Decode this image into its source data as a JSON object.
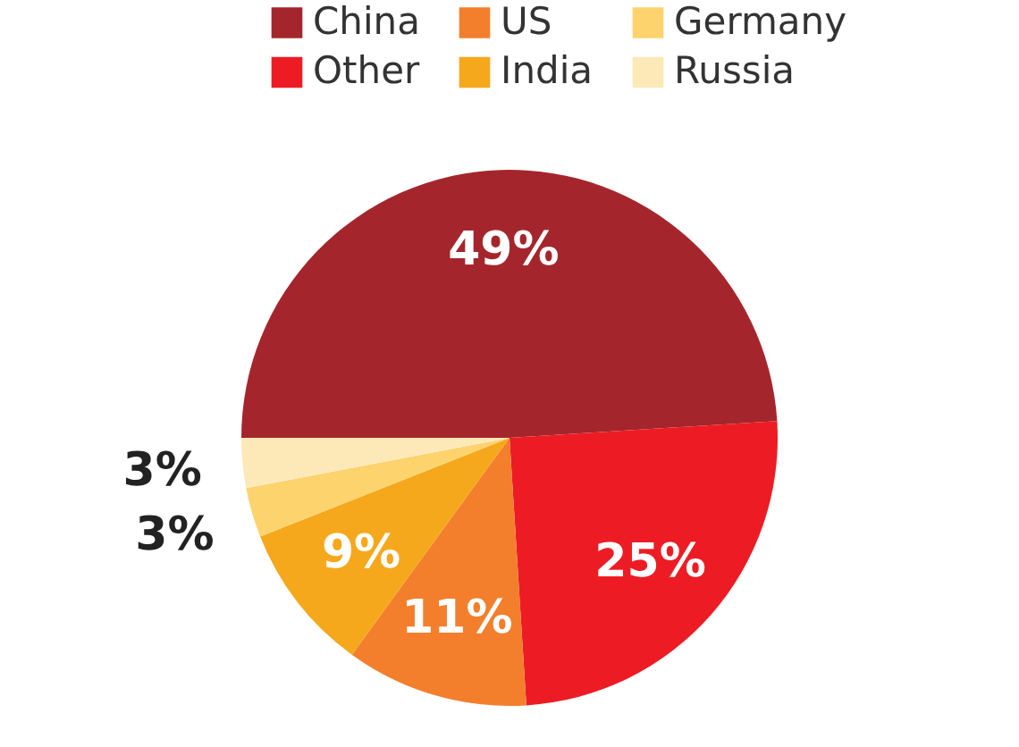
{
  "chart_data": {
    "type": "pie",
    "categories": [
      "China",
      "Other",
      "US",
      "India",
      "Germany",
      "Russia"
    ],
    "values": [
      49,
      25,
      11,
      9,
      3,
      3
    ],
    "colors": [
      "#a4262c",
      "#ed1c24",
      "#f37f2c",
      "#f6a81c",
      "#fdd36e",
      "#fde9b8"
    ],
    "value_labels": [
      "49%",
      "25%",
      "11%",
      "9%",
      "3%",
      "3%"
    ],
    "legend": "top"
  }
}
